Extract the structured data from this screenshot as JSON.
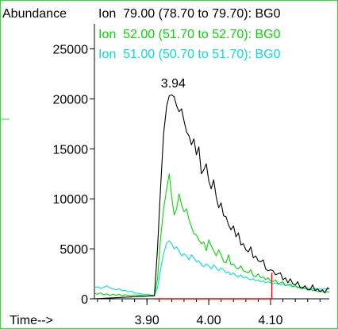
{
  "chart_data": {
    "type": "line",
    "ylabel": "Abundance",
    "xlabel": "Time-->",
    "xlim": [
      3.815,
      4.195
    ],
    "ylim": [
      0,
      27500
    ],
    "y_ticks": [
      0,
      5000,
      10000,
      15000,
      20000,
      25000
    ],
    "y_tick_labels": [
      "0",
      "5000",
      "10000",
      "15000",
      "20000",
      "25000"
    ],
    "x_ticks": [
      3.9,
      4.0,
      4.1
    ],
    "x_tick_labels": [
      "3.90",
      "4.00",
      "4.10"
    ],
    "peak_label": {
      "text": "3.94",
      "x": 3.94,
      "y": 20500
    },
    "integration_baseline": {
      "x": [
        3.912,
        4.102
      ],
      "y": [
        0,
        0
      ],
      "drop_x": 4.102,
      "drop_y_top": 2600,
      "color": "#ff0000"
    },
    "series": [
      {
        "name": "Ion  79.00 (78.70 to 79.70): BG0",
        "color": "#000000",
        "x": [
          3.815,
          3.912,
          3.917,
          3.922,
          3.927,
          3.932,
          3.936,
          3.94,
          3.944,
          3.948,
          3.952,
          3.956,
          3.96,
          3.964,
          3.968,
          3.972,
          3.976,
          3.98,
          3.984,
          3.988,
          3.992,
          3.996,
          4.0,
          4.004,
          4.008,
          4.012,
          4.016,
          4.02,
          4.024,
          4.028,
          4.032,
          4.036,
          4.04,
          4.044,
          4.048,
          4.052,
          4.056,
          4.06,
          4.064,
          4.068,
          4.072,
          4.076,
          4.08,
          4.084,
          4.088,
          4.092,
          4.096,
          4.1,
          4.104,
          4.108,
          4.112,
          4.116,
          4.12,
          4.124,
          4.128,
          4.132,
          4.136,
          4.14,
          4.144,
          4.148,
          4.152,
          4.156,
          4.16,
          4.164,
          4.168,
          4.172,
          4.176,
          4.18,
          4.184,
          4.188,
          4.192,
          4.195
        ],
        "y": [
          0,
          300,
          5000,
          11000,
          16500,
          19300,
          20300,
          20400,
          20200,
          19300,
          18700,
          19000,
          17800,
          16700,
          16300,
          15400,
          16000,
          14400,
          15200,
          12500,
          12900,
          13500,
          11800,
          11000,
          11900,
          10200,
          9100,
          9600,
          8300,
          8200,
          7400,
          6900,
          7300,
          6200,
          6600,
          5400,
          5500,
          4900,
          4700,
          5200,
          4100,
          4300,
          3800,
          3700,
          3900,
          3000,
          2800,
          2900,
          2800,
          2400,
          2500,
          2600,
          1900,
          2100,
          1600,
          2000,
          1500,
          1400,
          1700,
          1100,
          1100,
          1300,
          900,
          900,
          1400,
          800,
          1000,
          700,
          900,
          600,
          1100,
          1000
        ]
      },
      {
        "name": "Ion  52.00 (51.70 to 52.70): BG0",
        "color": "#00dd00",
        "x": [
          3.815,
          3.82,
          3.825,
          3.83,
          3.835,
          3.84,
          3.845,
          3.85,
          3.855,
          3.86,
          3.865,
          3.87,
          3.875,
          3.88,
          3.885,
          3.89,
          3.895,
          3.9,
          3.905,
          3.912,
          3.917,
          3.922,
          3.927,
          3.932,
          3.936,
          3.94,
          3.944,
          3.948,
          3.952,
          3.956,
          3.96,
          3.964,
          3.968,
          3.972,
          3.976,
          3.98,
          3.984,
          3.988,
          3.992,
          3.996,
          4.0,
          4.004,
          4.008,
          4.012,
          4.016,
          4.02,
          4.024,
          4.028,
          4.032,
          4.036,
          4.04,
          4.044,
          4.048,
          4.052,
          4.056,
          4.06,
          4.064,
          4.068,
          4.072,
          4.076,
          4.08,
          4.084,
          4.088,
          4.092,
          4.096,
          4.1,
          4.104,
          4.108,
          4.112,
          4.116,
          4.12,
          4.124,
          4.128,
          4.132,
          4.136,
          4.14,
          4.144,
          4.148,
          4.152,
          4.156,
          4.16,
          4.164,
          4.168,
          4.172,
          4.176,
          4.18,
          4.184,
          4.188,
          4.192,
          4.195
        ],
        "y": [
          550,
          450,
          600,
          400,
          500,
          350,
          450,
          350,
          450,
          300,
          400,
          350,
          300,
          400,
          350,
          350,
          300,
          300,
          350,
          300,
          2000,
          6000,
          9000,
          11000,
          12500,
          10200,
          8400,
          9000,
          10500,
          9400,
          8700,
          9000,
          7900,
          7200,
          6500,
          6400,
          5900,
          5500,
          5700,
          4800,
          5900,
          5300,
          4800,
          4300,
          4900,
          4400,
          3700,
          3600,
          4400,
          3400,
          3500,
          3100,
          3000,
          3300,
          2800,
          2700,
          2600,
          2900,
          2300,
          2200,
          2500,
          2100,
          2200,
          1900,
          2100,
          1800,
          1700,
          1900,
          1500,
          1600,
          1700,
          1300,
          1400,
          1500,
          1200,
          1300,
          1100,
          1200,
          1000,
          1100,
          900,
          1000,
          800,
          900,
          700,
          800,
          700,
          650,
          700,
          650
        ]
      },
      {
        "name": "Ion  51.00 (50.70 to 51.70): BG0",
        "color": "#00e0e0",
        "x": [
          3.815,
          3.82,
          3.825,
          3.83,
          3.835,
          3.84,
          3.845,
          3.85,
          3.855,
          3.86,
          3.865,
          3.87,
          3.875,
          3.88,
          3.885,
          3.89,
          3.895,
          3.9,
          3.905,
          3.912,
          3.917,
          3.922,
          3.927,
          3.932,
          3.936,
          3.94,
          3.944,
          3.948,
          3.952,
          3.956,
          3.96,
          3.964,
          3.968,
          3.972,
          3.976,
          3.98,
          3.984,
          3.988,
          3.992,
          3.996,
          4.0,
          4.004,
          4.008,
          4.012,
          4.016,
          4.02,
          4.024,
          4.028,
          4.032,
          4.036,
          4.04,
          4.044,
          4.048,
          4.052,
          4.056,
          4.06,
          4.064,
          4.068,
          4.072,
          4.076,
          4.08,
          4.084,
          4.088,
          4.092,
          4.096,
          4.1,
          4.104,
          4.108,
          4.112,
          4.116,
          4.12,
          4.124,
          4.128,
          4.132,
          4.136,
          4.14,
          4.144,
          4.148,
          4.152,
          4.156,
          4.16,
          4.164,
          4.168,
          4.172,
          4.176,
          4.18,
          4.184,
          4.188,
          4.192,
          4.195
        ],
        "y": [
          1100,
          1200,
          1050,
          1150,
          1300,
          1100,
          1000,
          900,
          1000,
          800,
          850,
          700,
          750,
          600,
          550,
          500,
          450,
          450,
          400,
          350,
          1100,
          2900,
          4500,
          5600,
          5800,
          5500,
          5000,
          5200,
          4800,
          4300,
          4500,
          4300,
          3900,
          4400,
          4100,
          3700,
          3800,
          3400,
          3200,
          3500,
          3300,
          3000,
          3400,
          3100,
          2800,
          3100,
          2900,
          2600,
          2700,
          2400,
          2600,
          2300,
          2200,
          2400,
          2100,
          2200,
          2000,
          1900,
          2000,
          1800,
          1900,
          1700,
          1800,
          1600,
          1700,
          1600,
          1500,
          1600,
          1500,
          1400,
          1500,
          1300,
          1400,
          1300,
          1200,
          1300,
          1200,
          1100,
          1200,
          1000,
          1100,
          1000,
          1000,
          1050,
          950,
          1000,
          950,
          1000,
          950,
          1000
        ]
      }
    ]
  }
}
